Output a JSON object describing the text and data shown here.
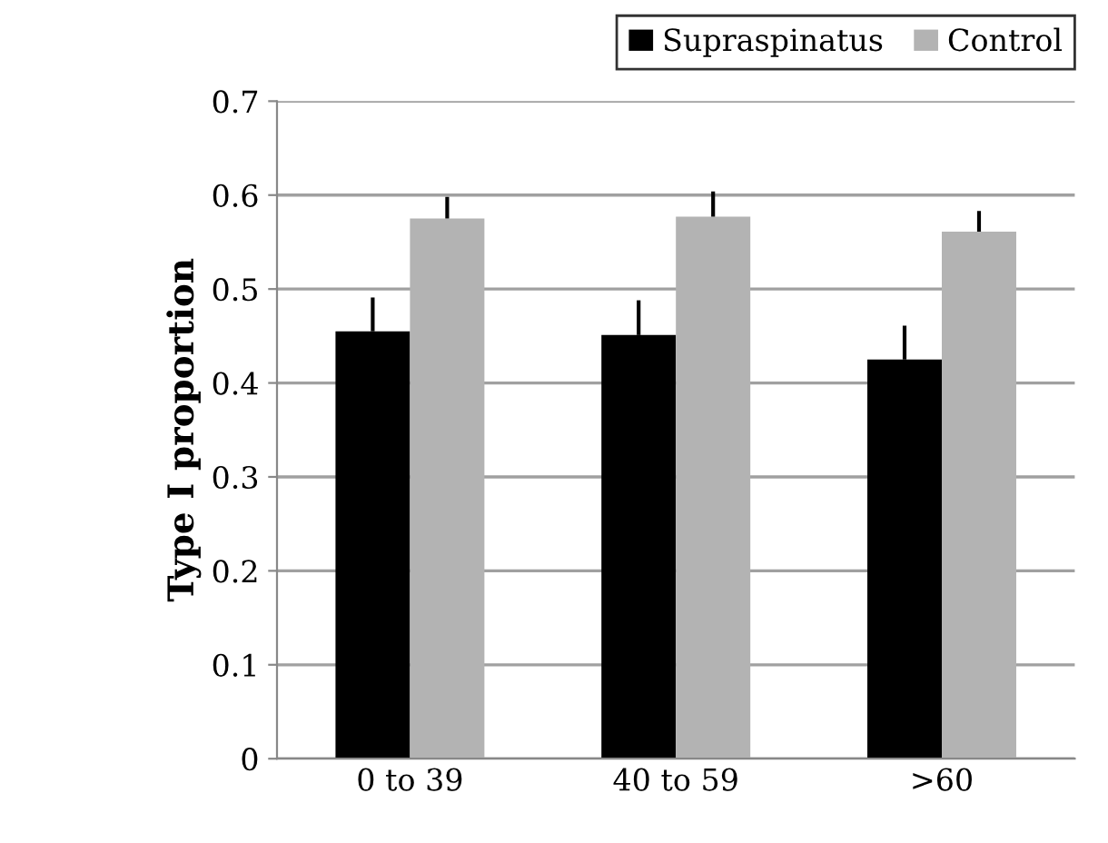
{
  "chart_data": {
    "type": "bar",
    "ylabel": "Type I proportion",
    "categories": [
      "0 to 39",
      "40 to 59",
      ">60"
    ],
    "series": [
      {
        "name": "Supraspinatus",
        "color": "#000000",
        "values": [
          0.455,
          0.451,
          0.425
        ],
        "errors": [
          [
            0.455,
            0.491
          ],
          [
            0.451,
            0.488
          ],
          [
            0.425,
            0.461
          ]
        ]
      },
      {
        "name": "Control",
        "color": "#b3b3b3",
        "values": [
          0.575,
          0.577,
          0.561
        ],
        "errors": [
          [
            0.575,
            0.598
          ],
          [
            0.577,
            0.604
          ],
          [
            0.561,
            0.583
          ]
        ]
      }
    ],
    "ylim": [
      0,
      0.7
    ],
    "yticks": [
      0,
      0.1,
      0.2,
      0.3,
      0.4,
      0.5,
      0.6,
      0.7
    ],
    "grid": "y",
    "legend": "top right"
  }
}
